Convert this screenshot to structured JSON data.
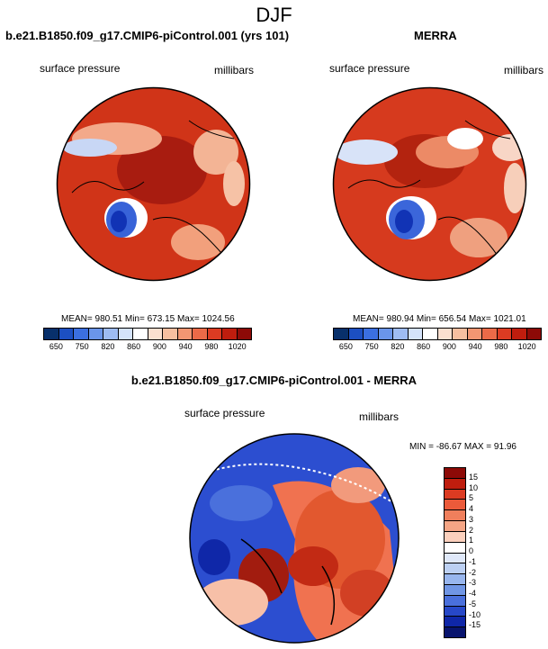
{
  "figure": {
    "title": "DJF"
  },
  "panels": {
    "model": {
      "title": "b.e21.B1850.f09_g17.CMIP6-piControl.001 (yrs 101)",
      "left_label": "surface pressure",
      "right_label": "millibars",
      "stats": "MEAN= 980.51  Min= 673.15  Max= 1024.56"
    },
    "obs": {
      "title": "MERRA",
      "left_label": "surface pressure",
      "right_label": "millibars",
      "stats": "MEAN= 980.94  Min= 656.54  Max= 1021.01"
    },
    "diff": {
      "title": "b.e21.B1850.f09_g17.CMIP6-piControl.001 - MERRA",
      "left_label": "surface pressure",
      "right_label": "millibars",
      "stats": "MIN = -86.67 MAX =  91.96"
    }
  },
  "colorbar_abs": {
    "labels": [
      "650",
      "750",
      "820",
      "860",
      "900",
      "940",
      "980",
      "1020"
    ],
    "colors": [
      "#08306b",
      "#1c4fc2",
      "#3b6fe0",
      "#6a95ea",
      "#9ebcf2",
      "#d4e2fa",
      "#ffffff",
      "#fbe0d0",
      "#f7bfa0",
      "#f29672",
      "#eb6a48",
      "#dc3b22",
      "#bf1d0e",
      "#8d0a07"
    ]
  },
  "colorbar_diff": {
    "labels": [
      "15",
      "10",
      "5",
      "4",
      "3",
      "2",
      "1",
      "0",
      "-1",
      "-2",
      "-3",
      "-4",
      "-5",
      "-10",
      "-15"
    ],
    "colors": [
      "#8d0a07",
      "#bf1d0e",
      "#dc3b22",
      "#eb5a3a",
      "#f07f5c",
      "#f5a585",
      "#fbd0bd",
      "#ffffff",
      "#dfe8f9",
      "#bcd0f3",
      "#98b6ee",
      "#7096e5",
      "#4a70dc",
      "#2748c8",
      "#0f27a8",
      "#08146e"
    ]
  }
}
